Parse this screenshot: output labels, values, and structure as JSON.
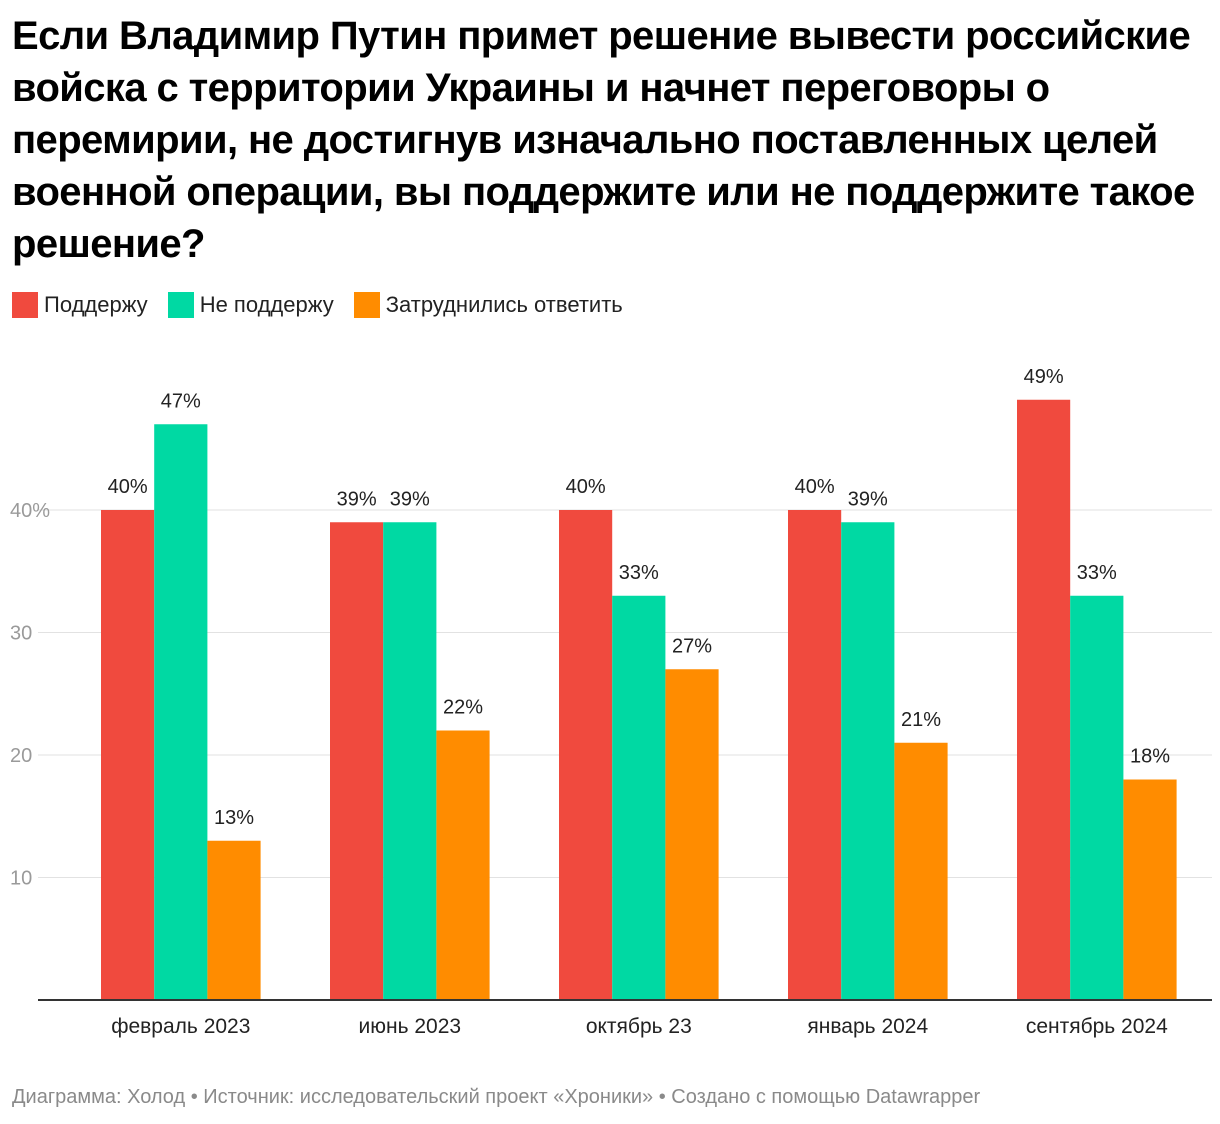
{
  "title": "Если Владимир Путин примет решение вывести российские войска с территории Украины и начнет переговоры о перемирии, не достигнув изначально поставленных целей военной операции, вы поддержите или не поддержите такое решение?",
  "footer": "Диаграмма: Холод • Источник: исследовательский проект «Хроники» • Создано с помощью Datawrapper",
  "chart_data": {
    "type": "bar",
    "title": "Если Владимир Путин примет решение вывести российские войска с территории Украины и начнет переговоры о перемирии, не достигнув изначально поставленных целей военной операции, вы поддержите или не поддержите такое решение?",
    "categories": [
      "февраль 2023",
      "июнь 2023",
      "октябрь 23",
      "январь 2024",
      "сентябрь 2024"
    ],
    "series": [
      {
        "name": "Поддержу",
        "color": "#f04a3e",
        "values": [
          40,
          39,
          40,
          40,
          49
        ],
        "labels": [
          "40%",
          "39%",
          "40%",
          "40%",
          "49%"
        ]
      },
      {
        "name": "Не поддержу",
        "color": "#00d9a3",
        "values": [
          47,
          39,
          33,
          39,
          33
        ],
        "labels": [
          "47%",
          "39%",
          "33%",
          "39%",
          "33%"
        ]
      },
      {
        "name": "Затруднились ответить",
        "color": "#ff8c00",
        "values": [
          13,
          22,
          27,
          21,
          18
        ],
        "labels": [
          "13%",
          "22%",
          "27%",
          "21%",
          "18%"
        ]
      }
    ],
    "yticks": [
      10,
      20,
      30,
      40
    ],
    "ytick_labels": [
      "10",
      "20",
      "30",
      "40%"
    ],
    "ylim": [
      0,
      50
    ],
    "grid": true,
    "legend": "top-left"
  }
}
